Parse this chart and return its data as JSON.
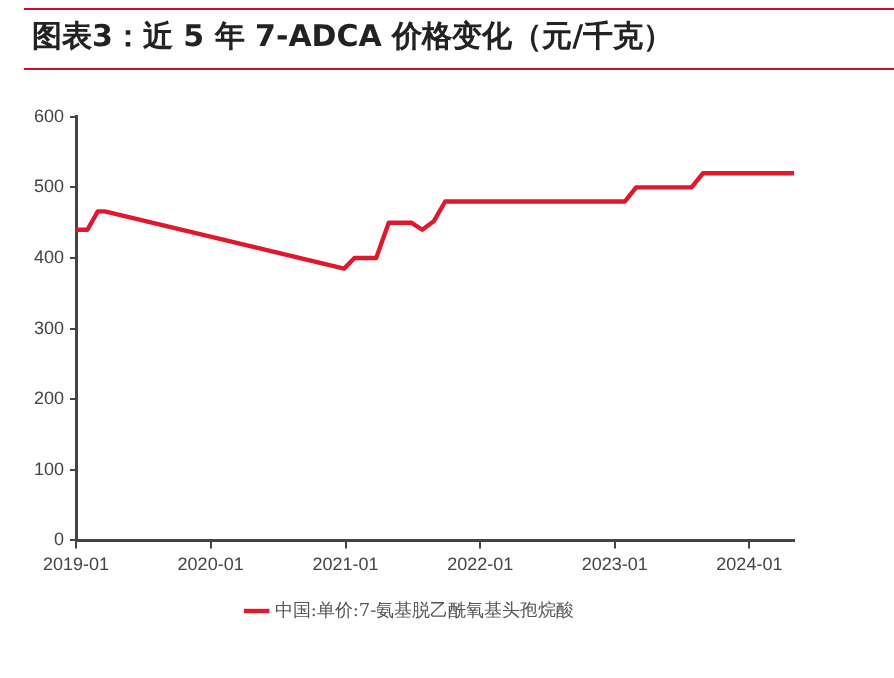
{
  "chart_data": {
    "type": "line",
    "title": "图表3：近 5 年 7-ADCA 价格变化（元/千克）",
    "x": [
      "2019-01-01",
      "2019-02-01",
      "2019-03-01",
      "2019-03-20",
      "2020-12-28",
      "2021-01-25",
      "2021-03-25",
      "2021-04-28",
      "2021-06-28",
      "2021-07-28",
      "2021-08-28",
      "2021-09-28",
      "2023-01-28",
      "2023-02-28",
      "2023-07-28",
      "2023-08-28",
      "2024-05-01"
    ],
    "series": [
      {
        "name": "中国:单价:7-氨基脱乙酰氧基头孢烷酸",
        "color": "#e0182d",
        "values": [
          440,
          440,
          466,
          466,
          385,
          400,
          400,
          450,
          450,
          440,
          452,
          480,
          480,
          500,
          500,
          520,
          520
        ]
      }
    ],
    "xlim": [
      "2019-01-01",
      "2024-05-01"
    ],
    "xticks": [
      "2019-01",
      "2020-01",
      "2021-01",
      "2022-01",
      "2023-01",
      "2024-01"
    ],
    "ylim": [
      0,
      600
    ],
    "yticks": [
      0,
      100,
      200,
      300,
      400,
      500,
      600
    ],
    "grid": false,
    "legend": "bottom",
    "marker": "none",
    "line_style": "solid"
  }
}
